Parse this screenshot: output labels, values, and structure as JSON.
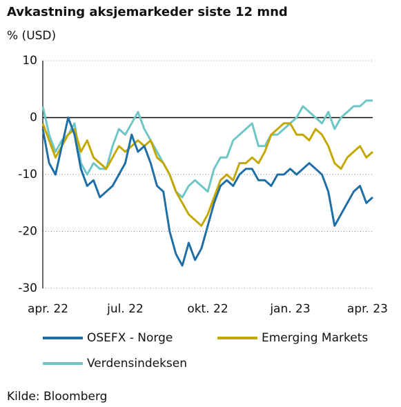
{
  "chart_data": {
    "type": "line",
    "title": "Avkastning aksjemarkeder siste 12 mnd",
    "subtitle": "% (USD)",
    "source": "Kilde: Bloomberg",
    "categories": [
      "apr. 22",
      null,
      null,
      null,
      null,
      null,
      null,
      null,
      null,
      null,
      null,
      null,
      null,
      "jul. 22",
      null,
      null,
      null,
      null,
      null,
      null,
      null,
      null,
      null,
      null,
      null,
      null,
      "okt. 22",
      null,
      null,
      null,
      null,
      null,
      null,
      null,
      null,
      null,
      null,
      null,
      null,
      "jan. 23",
      null,
      null,
      null,
      null,
      null,
      null,
      null,
      null,
      null,
      null,
      null,
      null,
      "apr. 23"
    ],
    "ylim": [
      -30,
      10
    ],
    "yticks": [
      10,
      0,
      -10,
      -20,
      -30
    ],
    "grid": true,
    "series": [
      {
        "name": "OSEFX - Norge",
        "color": "#1f6fa6",
        "values": [
          -2,
          -8,
          -10,
          -5,
          0,
          -3,
          -9,
          -12,
          -11,
          -14,
          -13,
          -12,
          -10,
          -8,
          -3,
          -6,
          -5,
          -8,
          -12,
          -13,
          -20,
          -24,
          -26,
          -22,
          -25,
          -23,
          -19,
          -15,
          -12,
          -11,
          -12,
          -10,
          -9,
          -9,
          -11,
          -11,
          -12,
          -10,
          -10,
          -9,
          -10,
          -9,
          -8,
          -9,
          -10,
          -13,
          -19,
          -17,
          -15,
          -13,
          -12,
          -15,
          -14
        ]
      },
      {
        "name": "Emerging Markets",
        "color": "#c4a800",
        "values": [
          -1,
          -4,
          -7,
          -5,
          -3,
          -2,
          -6,
          -4,
          -7,
          -8,
          -9,
          -7,
          -5,
          -6,
          -5,
          -4,
          -5,
          -4,
          -7,
          -8,
          -10,
          -13,
          -15,
          -17,
          -18,
          -19,
          -17,
          -14,
          -11,
          -10,
          -11,
          -8,
          -8,
          -7,
          -8,
          -6,
          -3,
          -2,
          -1,
          -1,
          -3,
          -3,
          -4,
          -2,
          -3,
          -5,
          -8,
          -9,
          -7,
          -6,
          -5,
          -7,
          -6
        ]
      },
      {
        "name": "Verdensindeksen",
        "color": "#6ec6c6",
        "values": [
          2,
          -3,
          -6,
          -4,
          -3,
          -1,
          -8,
          -10,
          -8,
          -9,
          -9,
          -5,
          -2,
          -3,
          -1,
          1,
          -2,
          -4,
          -6,
          -8,
          -10,
          -13,
          -14,
          -12,
          -11,
          -12,
          -13,
          -9,
          -7,
          -7,
          -4,
          -3,
          -2,
          -1,
          -5,
          -5,
          -3,
          -3,
          -2,
          -1,
          0,
          2,
          1,
          0,
          -1,
          1,
          -2,
          0,
          1,
          2,
          2,
          3,
          3
        ]
      }
    ]
  }
}
